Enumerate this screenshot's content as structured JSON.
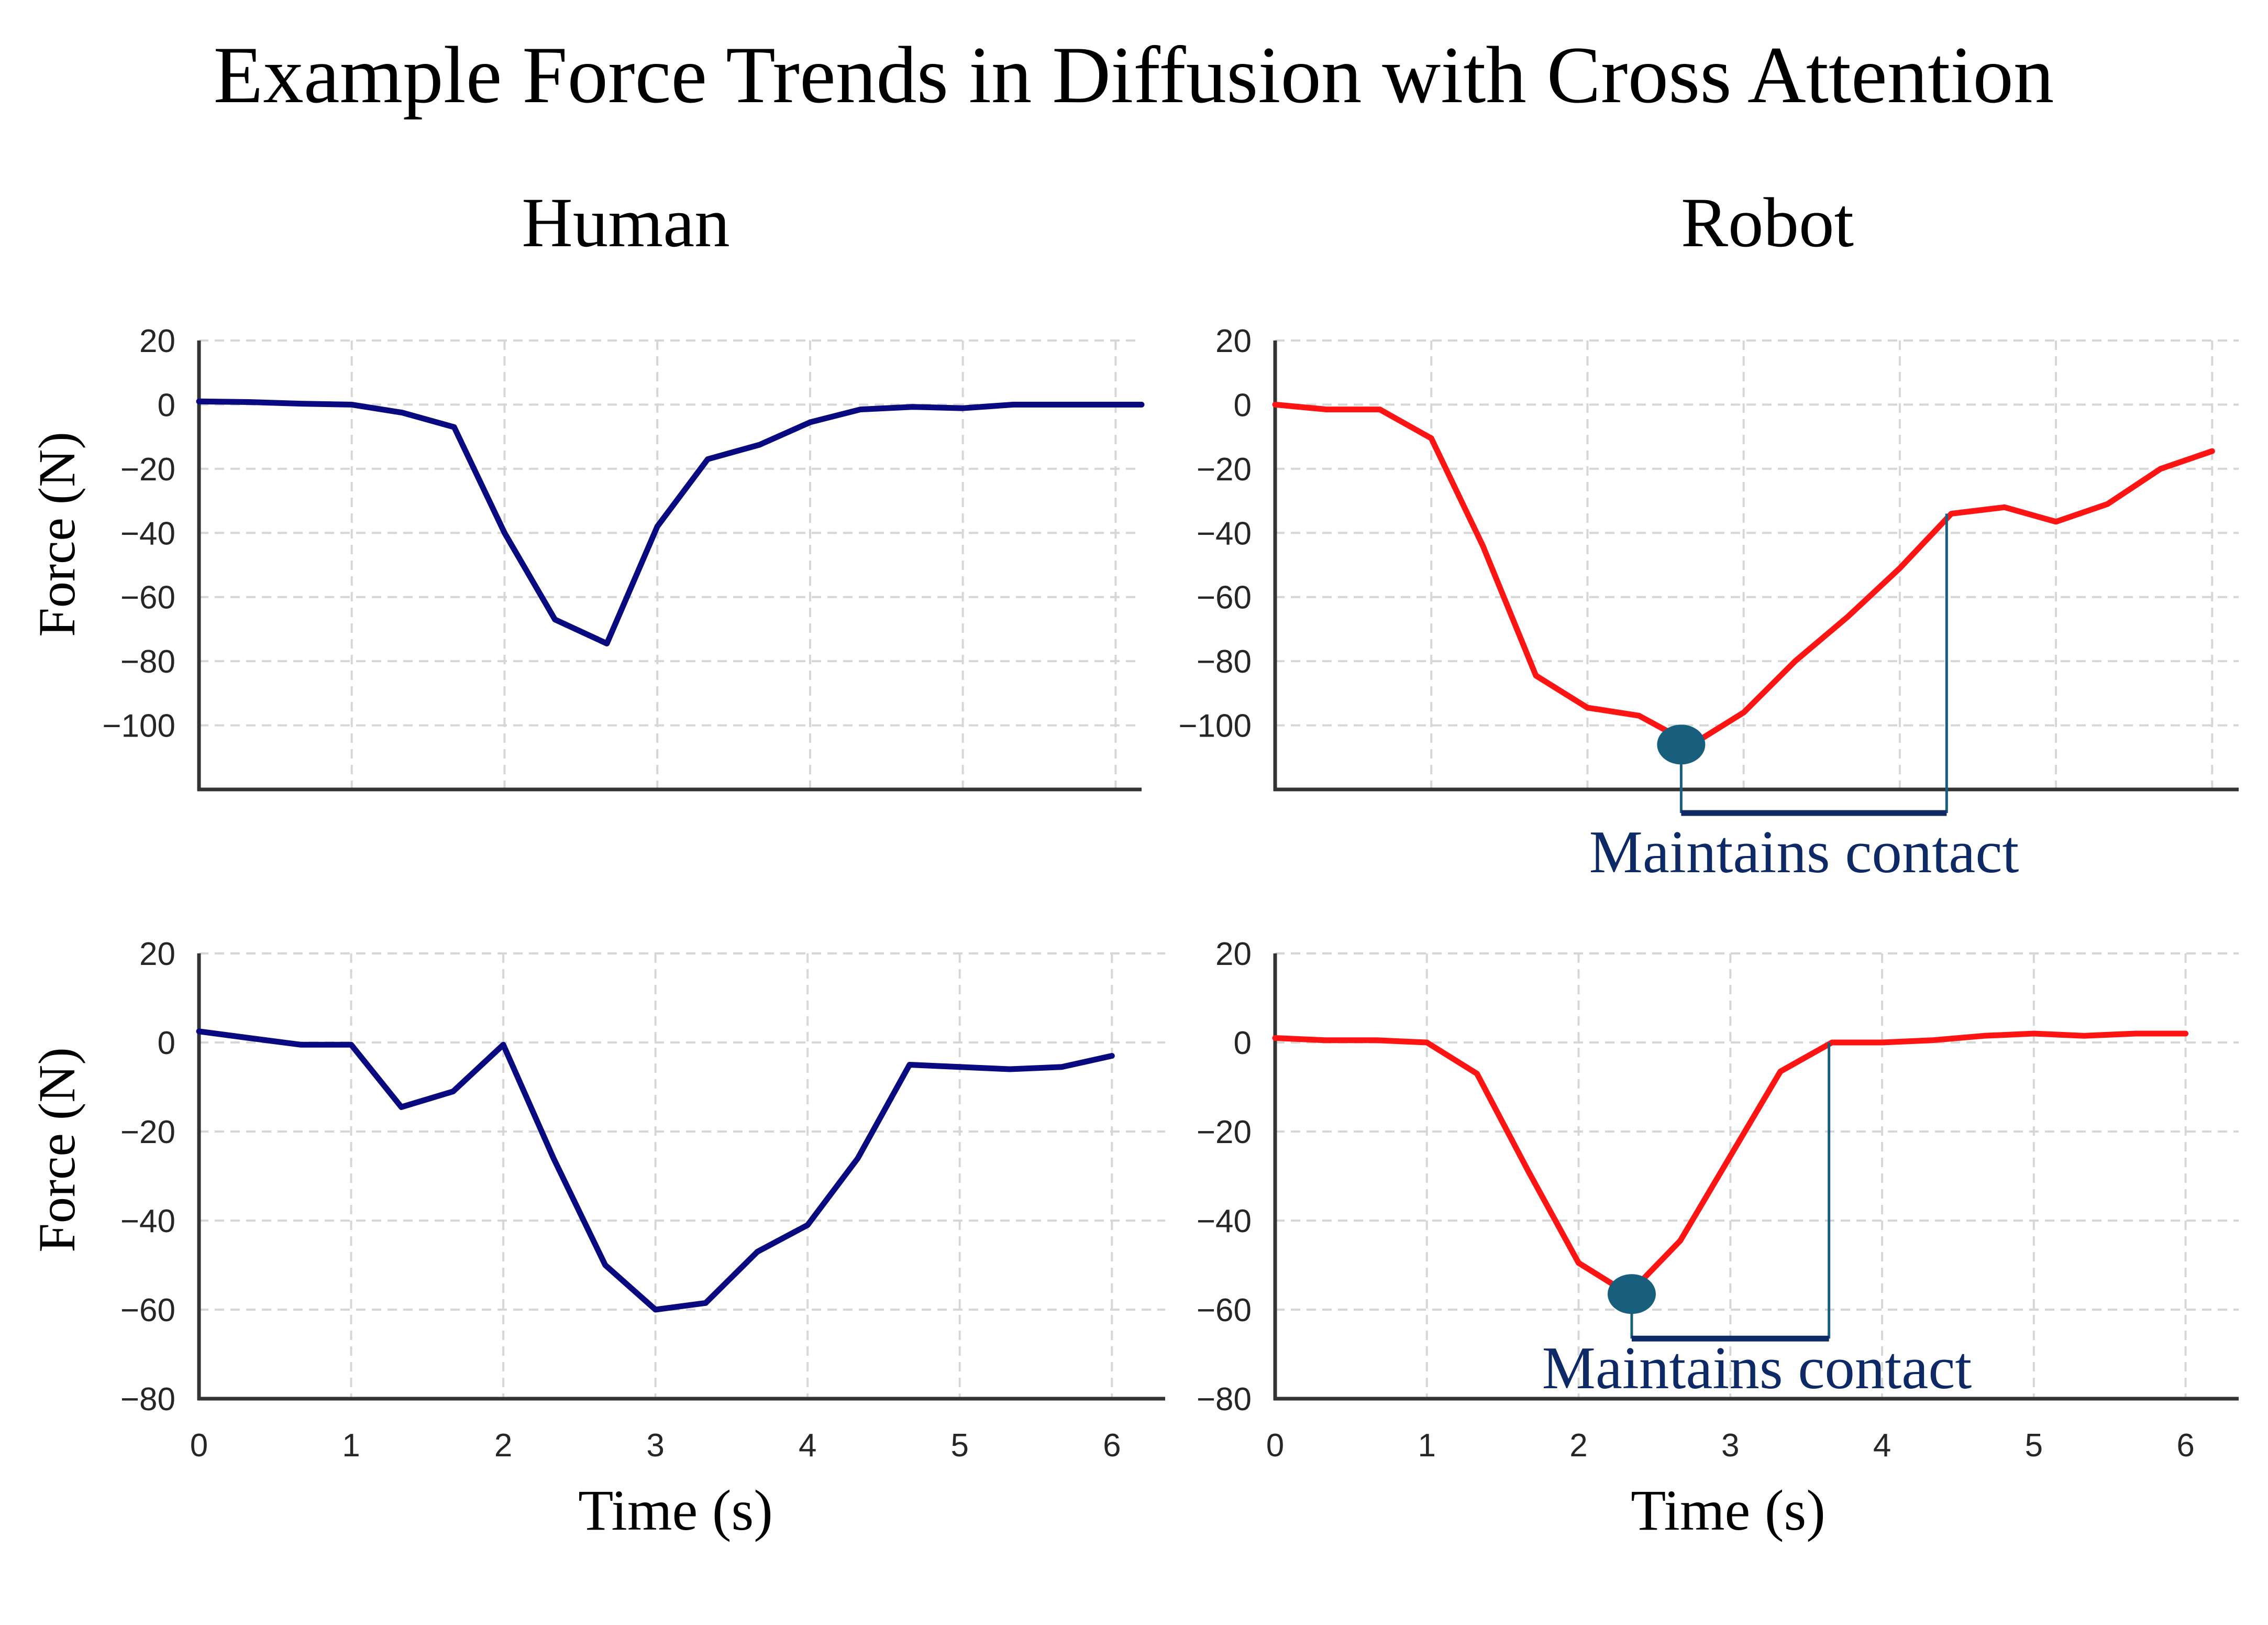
{
  "figure": {
    "title": "Example Force Trends in Diffusion with Cross Attention",
    "column_titles": [
      "Human",
      "Robot"
    ],
    "ylabel": "Force (N)",
    "xlabel": "Time (s)"
  },
  "colors": {
    "human_line": "#0a0a80",
    "robot_line": "#ff1414",
    "marker": "#185f7e",
    "bracket": "#0d2a66",
    "annotation_text": "#0d2a66"
  },
  "chart_data": [
    {
      "type": "line",
      "panel": "Human (top)",
      "x": [
        0,
        0.33,
        0.67,
        1.0,
        1.33,
        1.67,
        2.0,
        2.33,
        2.67,
        3.0,
        3.33,
        3.67,
        4.0,
        4.33,
        4.67,
        5.0,
        5.33,
        5.67,
        6.0,
        6.17
      ],
      "series": [
        {
          "values": [
            1,
            0.8,
            0.3,
            0,
            -2.5,
            -7,
            -40,
            -67,
            -74.5,
            -38,
            -17,
            -12.5,
            -5.5,
            -1.5,
            -0.7,
            -1.1,
            0,
            0,
            0,
            0
          ]
        }
      ],
      "xlim": [
        0,
        6.17
      ],
      "ylim": [
        -120,
        20
      ],
      "yticks": [
        20,
        0,
        -20,
        -40,
        -60,
        -80,
        -100
      ],
      "grid": true
    },
    {
      "type": "line",
      "panel": "Robot (top)",
      "x": [
        0,
        0.33,
        0.67,
        1.0,
        1.33,
        1.67,
        2.0,
        2.33,
        2.67,
        3.0,
        3.33,
        3.67,
        4.0,
        4.33,
        4.67,
        5.0,
        5.33,
        5.67,
        6.0
      ],
      "series": [
        {
          "values": [
            0,
            -1.5,
            -1.5,
            -10.5,
            -44,
            -84.5,
            -94.5,
            -97,
            -106,
            -96,
            -80,
            -66,
            -51,
            -34,
            -32,
            -36.5,
            -31,
            -20,
            -14.5
          ]
        }
      ],
      "xlim": [
        0,
        6.17
      ],
      "ylim": [
        -120,
        20
      ],
      "yticks": [
        20,
        0,
        -20,
        -40,
        -60,
        -80,
        -100
      ],
      "grid": true,
      "annotation": {
        "text": "Maintains contact",
        "marker_x": 2.6,
        "marker_y": -106,
        "end_x": 4.3
      }
    },
    {
      "type": "line",
      "panel": "Human (bottom)",
      "x": [
        0,
        0.33,
        0.67,
        1.0,
        1.33,
        1.67,
        2.0,
        2.33,
        2.67,
        3.0,
        3.33,
        3.67,
        4.0,
        4.33,
        4.67,
        5.0,
        5.33,
        5.67,
        6.0
      ],
      "series": [
        {
          "values": [
            2.5,
            1,
            -0.5,
            -0.5,
            -14.5,
            -11,
            -0.5,
            -26,
            -50,
            -60,
            -58.5,
            -47,
            -41,
            -26,
            -5,
            -5.5,
            -6,
            -5.5,
            -3
          ]
        }
      ],
      "xlim": [
        0,
        6.35
      ],
      "ylim": [
        -80,
        20
      ],
      "xticks": [
        0,
        1,
        2,
        3,
        4,
        5,
        6
      ],
      "yticks": [
        20,
        0,
        -20,
        -40,
        -60,
        -80
      ],
      "grid": true
    },
    {
      "type": "line",
      "panel": "Robot (bottom)",
      "x": [
        0,
        0.33,
        0.67,
        1.0,
        1.33,
        1.67,
        2.0,
        2.33,
        2.67,
        3.0,
        3.33,
        3.67,
        4.0,
        4.33,
        4.67,
        5.0,
        5.33,
        5.67,
        6.0
      ],
      "series": [
        {
          "values": [
            1,
            0.5,
            0.5,
            0,
            -7,
            -29,
            -49.5,
            -56.5,
            -44.5,
            -25.5,
            -6.5,
            0,
            0,
            0.5,
            1.5,
            2,
            1.5,
            2,
            2
          ]
        }
      ],
      "xlim": [
        0,
        6.35
      ],
      "ylim": [
        -80,
        20
      ],
      "xticks": [
        0,
        1,
        2,
        3,
        4,
        5,
        6
      ],
      "yticks": [
        20,
        0,
        -20,
        -40,
        -60,
        -80
      ],
      "grid": true,
      "annotation": {
        "text": "Maintains contact",
        "marker_x": 2.35,
        "marker_y": -56.5,
        "end_x": 3.65
      }
    }
  ]
}
